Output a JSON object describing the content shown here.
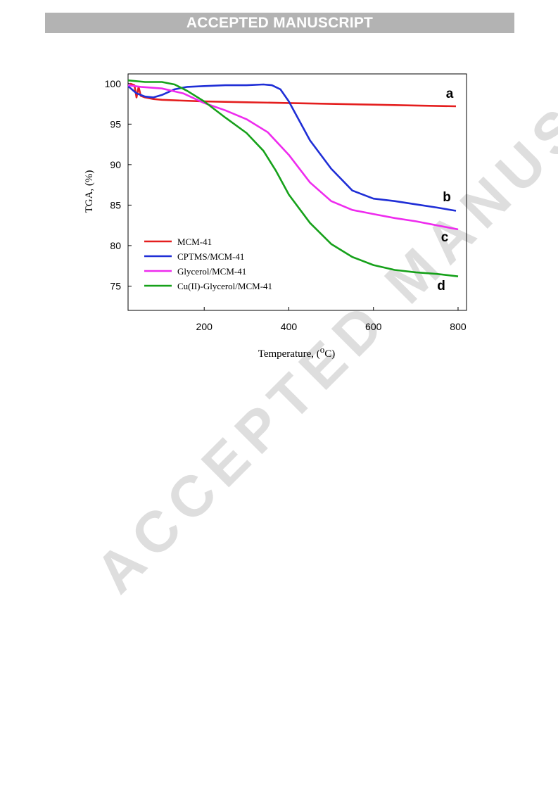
{
  "header": {
    "banner": "ACCEPTED MANUSCRIPT"
  },
  "watermark": {
    "text": "ACCEPTED MANUSCRIPT"
  },
  "chart_data": {
    "type": "line",
    "title": "",
    "xlabel": "Temperature, (°C)",
    "ylabel": "TGA, (%)",
    "xlim": [
      20,
      820
    ],
    "ylim": [
      72,
      101.2
    ],
    "xticks": [
      200,
      400,
      600,
      800
    ],
    "yticks": [
      75,
      80,
      85,
      90,
      95,
      100
    ],
    "grid": false,
    "legend_position": "lower-left",
    "series": [
      {
        "name": "MCM-41",
        "label": "a",
        "color": "#e41e1e",
        "x": [
          25,
          35,
          40,
          45,
          50,
          60,
          80,
          100,
          150,
          200,
          300,
          400,
          500,
          600,
          700,
          795
        ],
        "y": [
          100.0,
          99.8,
          98.3,
          99.6,
          98.5,
          98.3,
          98.1,
          98.0,
          97.9,
          97.8,
          97.7,
          97.6,
          97.5,
          97.4,
          97.3,
          97.2
        ]
      },
      {
        "name": "CPTMS/MCM-41",
        "label": "b",
        "color": "#1f2ed6",
        "x": [
          20,
          40,
          60,
          80,
          100,
          130,
          160,
          200,
          250,
          300,
          340,
          360,
          380,
          400,
          450,
          500,
          550,
          600,
          650,
          700,
          750,
          795
        ],
        "y": [
          99.7,
          98.8,
          98.4,
          98.3,
          98.6,
          99.3,
          99.6,
          99.7,
          99.8,
          99.8,
          99.9,
          99.8,
          99.3,
          97.8,
          93.0,
          89.5,
          86.8,
          85.8,
          85.5,
          85.1,
          84.7,
          84.3
        ]
      },
      {
        "name": "Glycerol/MCM-41",
        "label": "c",
        "color": "#ee2bee",
        "x": [
          20,
          50,
          100,
          150,
          200,
          250,
          300,
          350,
          400,
          450,
          500,
          550,
          600,
          650,
          700,
          750,
          800
        ],
        "y": [
          99.8,
          99.6,
          99.4,
          98.8,
          97.6,
          96.7,
          95.6,
          94.0,
          91.2,
          87.8,
          85.5,
          84.4,
          83.9,
          83.4,
          83.0,
          82.5,
          82.0
        ]
      },
      {
        "name": "Cu(II)-Glycerol/MCM-41",
        "label": "d",
        "color": "#16a11a",
        "x": [
          20,
          60,
          100,
          130,
          160,
          200,
          250,
          300,
          340,
          370,
          400,
          450,
          500,
          550,
          600,
          650,
          700,
          750,
          800
        ],
        "y": [
          100.4,
          100.2,
          100.2,
          99.9,
          99.1,
          97.8,
          95.8,
          93.9,
          91.7,
          89.2,
          86.3,
          82.8,
          80.2,
          78.6,
          77.6,
          77.0,
          76.7,
          76.5,
          76.2
        ]
      }
    ]
  }
}
